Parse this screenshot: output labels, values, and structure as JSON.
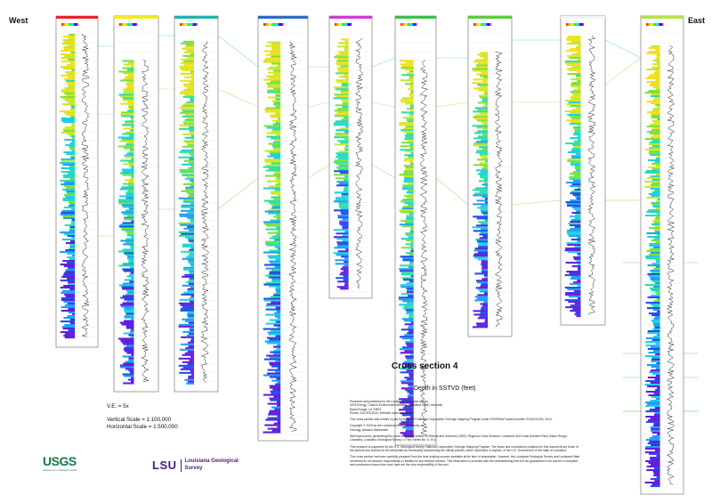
{
  "directions": {
    "west": "West",
    "east": "East"
  },
  "title": "Cross section 4",
  "subtitle": "Depth in SSTVD (feet)",
  "scale": {
    "ve": "V.E. = 5x",
    "vertical": "Vertical Scale = 1:100,000",
    "horizontal": "Horizontal Scale = 1:500,000"
  },
  "notes": [
    "Produced and published by the Louisiana Geological Survey\n3079 Energy, Coast & Environment Building, Louisiana State University\nBaton Rouge, LA 70803\nPhone: 225-578-5320; Website: www.lsu.edu/lgs/",
    "This cross section was funded in part by the USGS National Cooperative Geologic Mapping Program under STATEMAP award number G24AC00333, 2024.",
    "Copyright © 2025 by the Louisiana Geological Survey\nGeology: Abiodun Akintomide",
    "Well tops used in generating this cross section are based on Rebout and Gutierrez (1983): Regional Cross Sections, Louisiana Gulf Coast (Eastern Part), Baton Rouge, Louisiana, Louisiana Geological Survey, v. Folio Series No. 6, 10 p.",
    "This research is supported by the U.S. Geological Survey, National Cooperative Geologic Mapping Program. The views and conclusions contained in this document are those of the authors and should not be interpreted as necessarily representing the official policies, either expressed or implied, of the U.S. Government or the state of Louisiana.",
    "This cross section has been carefully prepared from the best existing sources available at the time of preparation. However, the Louisiana Geological Survey and Louisiana State University do not assume responsibility or liability for any reliance thereon. This information is provided with the understanding that it is not guaranteed to be correct or complete, and conclusions drawn from such data are the sole responsibility of the user."
  ],
  "logos": {
    "usgs": "USGS",
    "usgs_tagline": "science for a changing world",
    "lsu": "LSU",
    "lgs": "Louisiana Geological Survey"
  },
  "well_header_colors": [
    "#e8232a",
    "#f2ec1c",
    "#1fb3a8",
    "#2d6cc0",
    "#d23ad6",
    "#3cbf4a",
    "#5ccc3e",
    "#f4f4f4",
    "#b8e04a"
  ],
  "top_colors": [
    "#7fd9c8",
    "#d9d98a",
    "#e0c07a",
    "#e0a0d0",
    "#a0a0e0",
    "#6fd0e0",
    "#50c050"
  ]
}
